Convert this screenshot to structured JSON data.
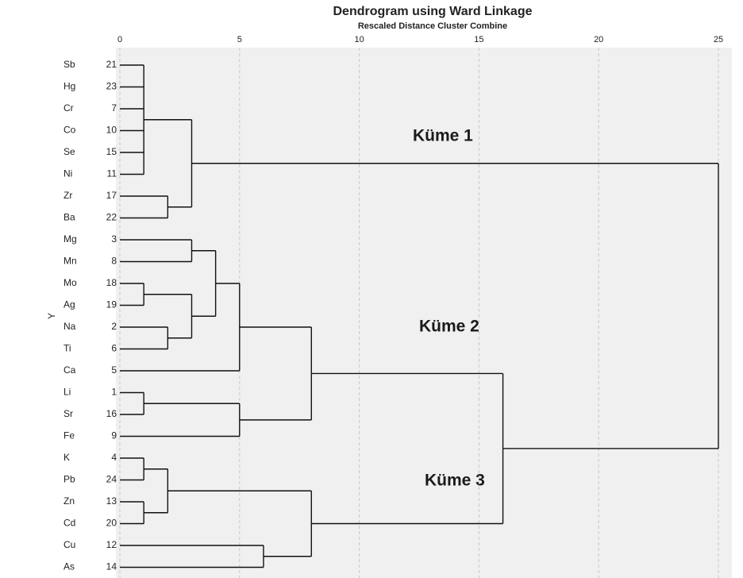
{
  "chart_data": {
    "type": "dendrogram",
    "title": "Dendrogram using Ward Linkage",
    "subtitle": "Rescaled Distance Cluster Combine",
    "y_label": "Y",
    "xlim": [
      0,
      25
    ],
    "xticks": [
      0,
      5,
      10,
      15,
      20,
      25
    ],
    "grid": true,
    "annotations": [
      "Küme 1",
      "Küme 2",
      "Küme 3"
    ],
    "tree": {
      "height": 25,
      "children": [
        {
          "height": 3,
          "children": [
            {
              "height": 1,
              "children": [
                {
                  "label": "Sb",
                  "id": 21
                },
                {
                  "label": "Hg",
                  "id": 23
                },
                {
                  "label": "Cr",
                  "id": 7
                },
                {
                  "label": "Co",
                  "id": 10
                },
                {
                  "label": "Se",
                  "id": 15
                },
                {
                  "label": "Ni",
                  "id": 11
                }
              ]
            },
            {
              "height": 2,
              "children": [
                {
                  "label": "Zr",
                  "id": 17
                },
                {
                  "label": "Ba",
                  "id": 22
                }
              ]
            }
          ]
        },
        {
          "height": 16,
          "children": [
            {
              "height": 8,
              "children": [
                {
                  "height": 5,
                  "children": [
                    {
                      "height": 4,
                      "children": [
                        {
                          "height": 3,
                          "children": [
                            {
                              "label": "Mg",
                              "id": 3
                            },
                            {
                              "label": "Mn",
                              "id": 8
                            }
                          ]
                        },
                        {
                          "height": 3,
                          "children": [
                            {
                              "height": 1,
                              "children": [
                                {
                                  "label": "Mo",
                                  "id": 18
                                },
                                {
                                  "label": "Ag",
                                  "id": 19
                                }
                              ]
                            },
                            {
                              "height": 2,
                              "children": [
                                {
                                  "label": "Na",
                                  "id": 2
                                },
                                {
                                  "label": "Ti",
                                  "id": 6
                                }
                              ]
                            }
                          ]
                        }
                      ]
                    },
                    {
                      "label": "Ca",
                      "id": 5
                    }
                  ]
                },
                {
                  "height": 5,
                  "children": [
                    {
                      "height": 1,
                      "children": [
                        {
                          "label": "Li",
                          "id": 1
                        },
                        {
                          "label": "Sr",
                          "id": 16
                        }
                      ]
                    },
                    {
                      "label": "Fe",
                      "id": 9
                    }
                  ]
                }
              ]
            },
            {
              "height": 8,
              "children": [
                {
                  "height": 2,
                  "children": [
                    {
                      "height": 1,
                      "children": [
                        {
                          "label": "K",
                          "id": 4
                        },
                        {
                          "label": "Pb",
                          "id": 24
                        }
                      ]
                    },
                    {
                      "height": 1,
                      "children": [
                        {
                          "label": "Zn",
                          "id": 13
                        },
                        {
                          "label": "Cd",
                          "id": 20
                        }
                      ]
                    }
                  ]
                },
                {
                  "height": 6,
                  "children": [
                    {
                      "label": "Cu",
                      "id": 12
                    },
                    {
                      "label": "As",
                      "id": 14
                    }
                  ]
                }
              ]
            }
          ]
        }
      ]
    }
  }
}
